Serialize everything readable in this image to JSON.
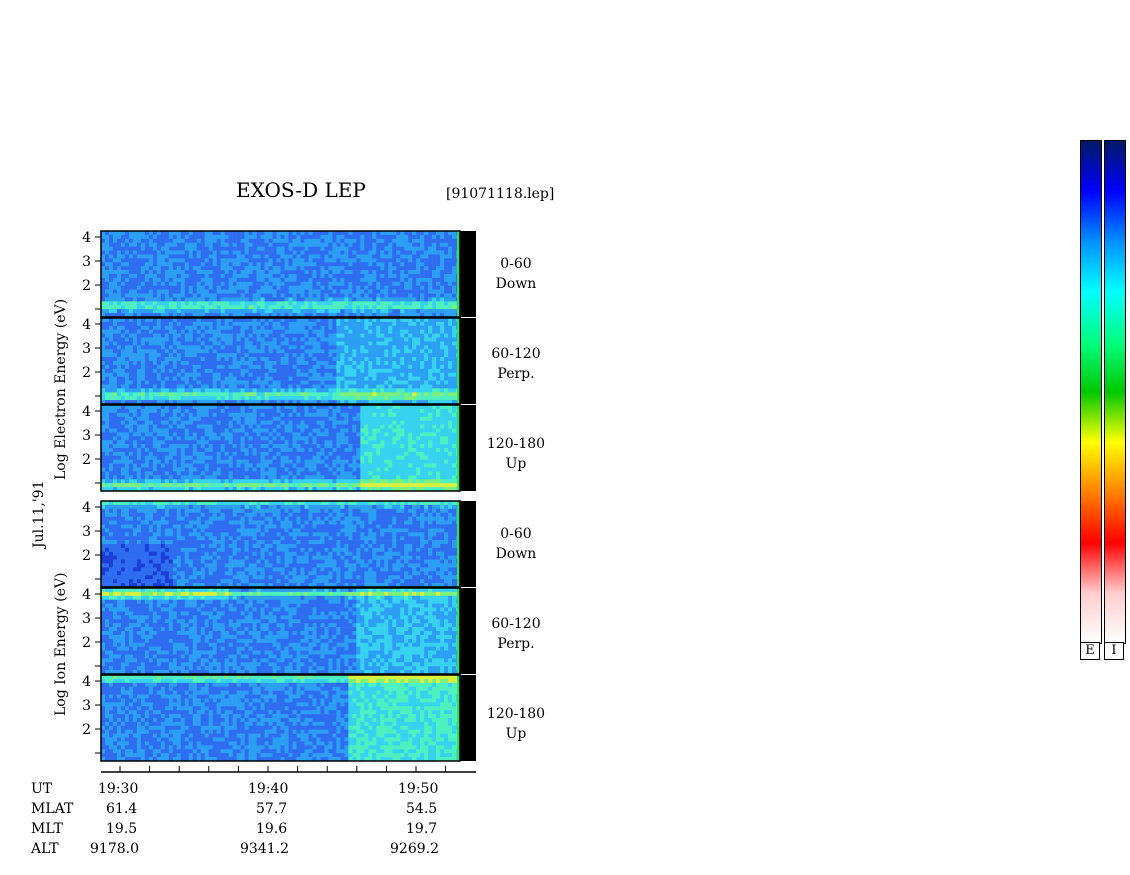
{
  "chart_data": {
    "type": "heatmap",
    "title": "EXOS-D LEP",
    "file_label": "[91071118.lep]",
    "date_label": "Jul.11,'91",
    "y_axis": {
      "electron_label": [
        "Log",
        "Electron",
        "Energy",
        "(eV)"
      ],
      "ion_label": [
        "Log",
        "Ion",
        "Energy",
        "(eV)"
      ],
      "tick_labels": [
        "2",
        "3",
        "4"
      ],
      "ylim": [
        1,
        4
      ]
    },
    "x_axis": {
      "tick_labels": [
        "19:30",
        "19:40",
        "19:50"
      ],
      "minor_ticks_per_major": 3
    },
    "panels": [
      {
        "species": "Electron",
        "pitch": "0-60",
        "direction": "Down",
        "features": [
          {
            "type": "band",
            "energy": 1.4,
            "intensity": "green"
          }
        ]
      },
      {
        "species": "Electron",
        "pitch": "60-120",
        "direction": "Perp.",
        "features": [
          {
            "type": "band",
            "energy": 1.3,
            "intensity": "green"
          }
        ]
      },
      {
        "species": "Electron",
        "pitch": "120-180",
        "direction": "Up",
        "features": [
          {
            "type": "band",
            "energy": 1.2,
            "intensity": "green"
          }
        ]
      },
      {
        "species": "Ion",
        "pitch": "0-60",
        "direction": "Down",
        "features": [
          {
            "type": "band",
            "energy": 4.0,
            "intensity": "cyan"
          }
        ]
      },
      {
        "species": "Ion",
        "pitch": "60-120",
        "direction": "Perp.",
        "features": [
          {
            "type": "band",
            "energy": 3.8,
            "intensity": "yellow"
          }
        ]
      },
      {
        "species": "Ion",
        "pitch": "120-180",
        "direction": "Up",
        "features": [
          {
            "type": "band",
            "energy": 3.9,
            "intensity": "green"
          }
        ]
      }
    ],
    "ephemeris": {
      "rows": [
        {
          "label": "UT",
          "values": [
            "19:30",
            "19:40",
            "19:50"
          ]
        },
        {
          "label": "MLAT",
          "values": [
            "61.4",
            "57.7",
            "54.5"
          ]
        },
        {
          "label": "MLT",
          "values": [
            "19.5",
            "19.6",
            "19.7"
          ]
        },
        {
          "label": "ALT",
          "values": [
            "9178.0",
            "9341.2",
            "9269.2"
          ]
        }
      ]
    },
    "colorbars": [
      {
        "label": "E"
      },
      {
        "label": "I"
      }
    ],
    "colormap": [
      "#001a66",
      "#0000ff",
      "#0090ff",
      "#00ffff",
      "#00ff80",
      "#00c800",
      "#ffff00",
      "#ff8000",
      "#ff0000",
      "#ffcccc",
      "#ffffff"
    ]
  }
}
